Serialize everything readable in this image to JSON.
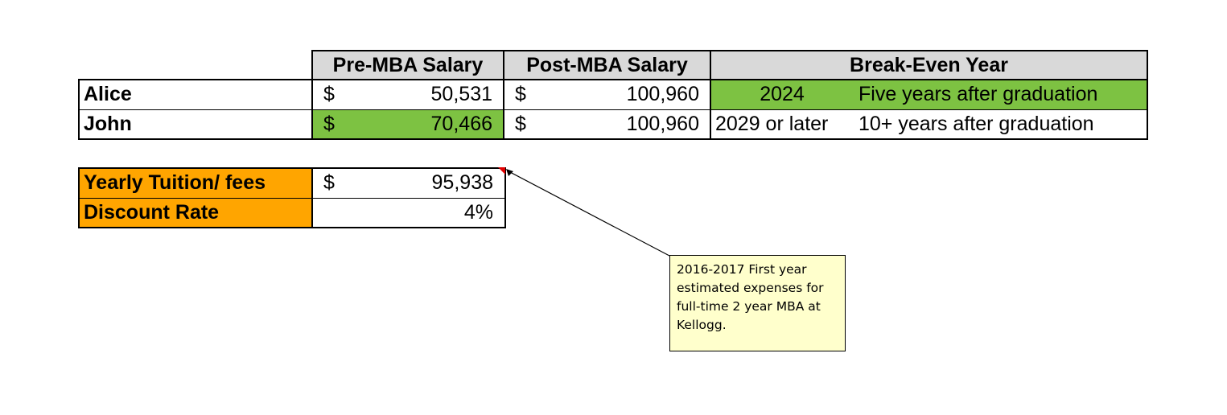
{
  "salary_table": {
    "headers": {
      "pre": "Pre-MBA Salary",
      "post": "Post-MBA Salary",
      "breakeven": "Break-Even Year"
    },
    "rows": [
      {
        "name": "Alice",
        "pre_currency": "$",
        "pre_value": "50,531",
        "post_currency": "$",
        "post_value": "100,960",
        "year": "2024",
        "note": "Five years after graduation"
      },
      {
        "name": "John",
        "pre_currency": "$",
        "pre_value": "70,466",
        "post_currency": "$",
        "post_value": "100,960",
        "year": "2029 or later",
        "note": "10+ years after graduation"
      }
    ]
  },
  "inputs_table": {
    "tuition_label": "Yearly Tuition/ fees",
    "tuition_currency": "$",
    "tuition_value": "95,938",
    "discount_label": "Discount Rate",
    "discount_value": "4%"
  },
  "comment": {
    "text": "2016-2017 First year estimated expenses for full-time 2 year MBA at Kellogg."
  },
  "colors": {
    "header_bg": "#d9d9d9",
    "highlight_green": "#7dc242",
    "label_orange": "#ffa500",
    "comment_bg": "#ffffcc"
  }
}
